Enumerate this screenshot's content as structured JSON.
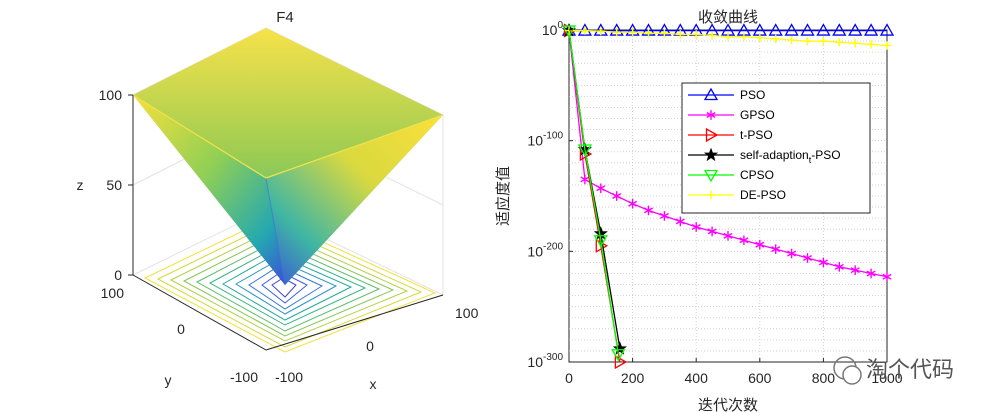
{
  "left_plot": {
    "title": "F4",
    "xlabel": "x",
    "ylabel": "y",
    "zlabel": "z",
    "x_ticks": [
      "-100",
      "0",
      "100"
    ],
    "y_ticks": [
      "-100",
      "0",
      "100"
    ],
    "z_ticks": [
      "0",
      "50",
      "100"
    ]
  },
  "chart_data": {
    "type": "line",
    "title": "收敛曲线",
    "xlabel": "迭代次数",
    "ylabel": "适应度值",
    "yscale": "log",
    "xlim": [
      0,
      1000
    ],
    "ylim_exp": [
      -300,
      0
    ],
    "x_ticks": [
      "0",
      "200",
      "400",
      "600",
      "800",
      "1000"
    ],
    "y_ticks": [
      {
        "base": "10",
        "exp": "0",
        "value_exp": 0
      },
      {
        "base": "10",
        "exp": "-100",
        "value_exp": -100
      },
      {
        "base": "10",
        "exp": "-200",
        "value_exp": -200
      },
      {
        "base": "10",
        "exp": "-300",
        "value_exp": -300
      }
    ],
    "series": [
      {
        "name": "PSO",
        "color": "#0000ff",
        "marker": "triangle-up",
        "x": [
          0,
          50,
          100,
          150,
          200,
          250,
          300,
          350,
          400,
          450,
          500,
          550,
          600,
          650,
          700,
          750,
          800,
          850,
          900,
          950,
          1000
        ],
        "y_exp": [
          3,
          2,
          2,
          2,
          1.9,
          1.9,
          1.8,
          1.8,
          1.7,
          1.7,
          1.6,
          1.6,
          1.5,
          1.5,
          1.4,
          1.4,
          1.3,
          1.3,
          1.2,
          1.2,
          1.1
        ]
      },
      {
        "name": "GPSO",
        "color": "#ff00ff",
        "marker": "asterisk",
        "x": [
          0,
          50,
          100,
          150,
          200,
          250,
          300,
          350,
          400,
          450,
          500,
          550,
          600,
          650,
          700,
          750,
          800,
          850,
          900,
          950,
          1000
        ],
        "y_exp": [
          3,
          -135,
          -143,
          -150,
          -157,
          -163,
          -168,
          -173,
          -178,
          -182,
          -186,
          -190,
          -194,
          -198,
          -202,
          -206,
          -210,
          -214,
          -217,
          -220,
          -223
        ]
      },
      {
        "name": "t-PSO",
        "color": "#ff0000",
        "marker": "triangle-right",
        "x": [
          0,
          50,
          100,
          160
        ],
        "y_exp": [
          3,
          -112,
          -195,
          -300
        ]
      },
      {
        "name": "self-adaption",
        "name_sub": "t",
        "name_suffix": "-PSO",
        "color": "#000000",
        "marker": "star",
        "x": [
          0,
          50,
          100,
          160
        ],
        "y_exp": [
          3,
          -108,
          -184,
          -288
        ]
      },
      {
        "name": "CPSO",
        "color": "#00ff00",
        "marker": "triangle-down",
        "x": [
          0,
          50,
          100,
          155
        ],
        "y_exp": [
          3,
          -108,
          -190,
          -293
        ]
      },
      {
        "name": "DE-PSO",
        "color": "#ffff00",
        "marker": "plus",
        "x": [
          0,
          50,
          100,
          150,
          200,
          250,
          300,
          350,
          400,
          450,
          500,
          550,
          600,
          650,
          700,
          750,
          800,
          850,
          900,
          950,
          1000
        ],
        "y_exp": [
          3,
          0,
          -1,
          -2,
          -2,
          -3,
          -3,
          -4,
          -4,
          -5,
          -6,
          -6,
          -7,
          -8,
          -9,
          -10,
          -10,
          -11,
          -12,
          -13,
          -14
        ]
      }
    ]
  },
  "watermark": "淘个代码"
}
